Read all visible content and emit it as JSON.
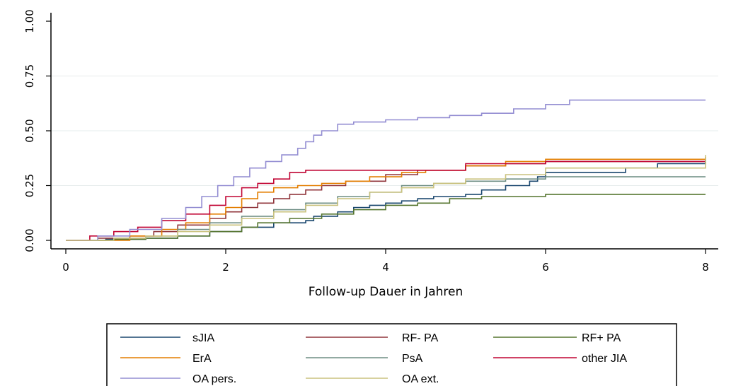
{
  "chart_data": {
    "type": "line",
    "title": "",
    "xlabel": "Follow-up Dauer in Jahren",
    "ylabel": "",
    "xlim": [
      0,
      8
    ],
    "ylim": [
      0,
      1
    ],
    "x_ticks": [
      "0",
      "2",
      "4",
      "6",
      "8"
    ],
    "y_ticks": [
      "0.00",
      "0.25",
      "0.50",
      "0.75",
      "1.00"
    ],
    "grid": "horizontal",
    "legend_position": "bottom",
    "series": [
      {
        "name": "sJIA",
        "color": "#1a476f",
        "x": [
          0,
          0.5,
          1.0,
          1.4,
          1.8,
          2.2,
          2.6,
          3.0,
          3.1,
          3.4,
          3.6,
          3.8,
          4.0,
          4.2,
          4.4,
          4.6,
          5.0,
          5.2,
          5.5,
          5.8,
          5.9,
          6.0,
          7.0,
          7.4,
          8.0
        ],
        "y": [
          0,
          0.005,
          0.01,
          0.02,
          0.04,
          0.06,
          0.08,
          0.09,
          0.11,
          0.13,
          0.15,
          0.16,
          0.17,
          0.18,
          0.19,
          0.2,
          0.21,
          0.23,
          0.25,
          0.27,
          0.29,
          0.31,
          0.33,
          0.35,
          0.37
        ]
      },
      {
        "name": "RF- PA",
        "color": "#90353b",
        "x": [
          0,
          0.4,
          0.8,
          1.1,
          1.4,
          1.8,
          2.0,
          2.2,
          2.4,
          2.6,
          2.8,
          3.0,
          3.2,
          3.5,
          4.0,
          4.4,
          5.0,
          5.5,
          6.0,
          8.0
        ],
        "y": [
          0,
          0.01,
          0.02,
          0.04,
          0.07,
          0.1,
          0.13,
          0.15,
          0.17,
          0.19,
          0.21,
          0.23,
          0.25,
          0.27,
          0.3,
          0.32,
          0.34,
          0.35,
          0.36,
          0.36
        ]
      },
      {
        "name": "RF+ PA",
        "color": "#55752f",
        "x": [
          0,
          0.6,
          1.0,
          1.4,
          1.8,
          2.2,
          2.4,
          2.8,
          3.2,
          3.6,
          4.0,
          4.4,
          4.8,
          5.2,
          6.0,
          8.0
        ],
        "y": [
          0,
          0.005,
          0.01,
          0.02,
          0.04,
          0.06,
          0.08,
          0.1,
          0.12,
          0.14,
          0.16,
          0.17,
          0.19,
          0.2,
          0.21,
          0.21
        ]
      },
      {
        "name": "ErA",
        "color": "#e37e00",
        "x": [
          0,
          0.8,
          1.2,
          1.5,
          1.8,
          2.0,
          2.2,
          2.4,
          2.6,
          2.9,
          3.2,
          3.5,
          3.8,
          4.2,
          4.5,
          5.0,
          5.5,
          6.0,
          8.0
        ],
        "y": [
          0,
          0.02,
          0.05,
          0.08,
          0.12,
          0.15,
          0.19,
          0.22,
          0.24,
          0.25,
          0.26,
          0.27,
          0.29,
          0.31,
          0.32,
          0.34,
          0.36,
          0.37,
          0.38
        ]
      },
      {
        "name": "PsA",
        "color": "#6e8e84",
        "x": [
          0,
          0.6,
          1.0,
          1.4,
          1.8,
          2.2,
          2.6,
          3.0,
          3.4,
          3.8,
          4.2,
          4.6,
          5.0,
          5.5,
          6.0,
          8.0
        ],
        "y": [
          0,
          0.01,
          0.02,
          0.05,
          0.08,
          0.11,
          0.14,
          0.17,
          0.2,
          0.22,
          0.25,
          0.26,
          0.27,
          0.28,
          0.29,
          0.29
        ]
      },
      {
        "name": "other JIA",
        "color": "#c10534",
        "x": [
          0,
          0.3,
          0.6,
          0.9,
          1.2,
          1.5,
          1.8,
          2.0,
          2.2,
          2.4,
          2.6,
          2.8,
          3.0,
          4.0,
          5.0,
          6.0,
          8.0
        ],
        "y": [
          0,
          0.02,
          0.04,
          0.06,
          0.09,
          0.12,
          0.16,
          0.2,
          0.24,
          0.26,
          0.28,
          0.31,
          0.32,
          0.32,
          0.35,
          0.36,
          0.36
        ]
      },
      {
        "name": "OA pers.",
        "color": "#938dd2",
        "x": [
          0,
          0.4,
          0.8,
          1.2,
          1.5,
          1.7,
          1.9,
          2.1,
          2.3,
          2.5,
          2.7,
          2.9,
          3.0,
          3.1,
          3.2,
          3.4,
          3.6,
          3.8,
          4.0,
          4.4,
          4.8,
          5.2,
          5.6,
          6.0,
          6.3,
          8.0
        ],
        "y": [
          0,
          0.02,
          0.05,
          0.1,
          0.15,
          0.2,
          0.25,
          0.29,
          0.33,
          0.36,
          0.39,
          0.42,
          0.45,
          0.48,
          0.5,
          0.53,
          0.54,
          0.54,
          0.55,
          0.56,
          0.57,
          0.58,
          0.6,
          0.62,
          0.64,
          0.64
        ]
      },
      {
        "name": "OA ext.",
        "color": "#cac27e",
        "x": [
          0,
          0.6,
          1.0,
          1.4,
          1.8,
          2.2,
          2.6,
          3.0,
          3.4,
          3.8,
          4.2,
          4.6,
          5.0,
          5.5,
          6.0,
          8.0
        ],
        "y": [
          0,
          0.01,
          0.02,
          0.04,
          0.07,
          0.1,
          0.13,
          0.16,
          0.19,
          0.22,
          0.24,
          0.26,
          0.28,
          0.3,
          0.33,
          0.39
        ]
      }
    ]
  }
}
